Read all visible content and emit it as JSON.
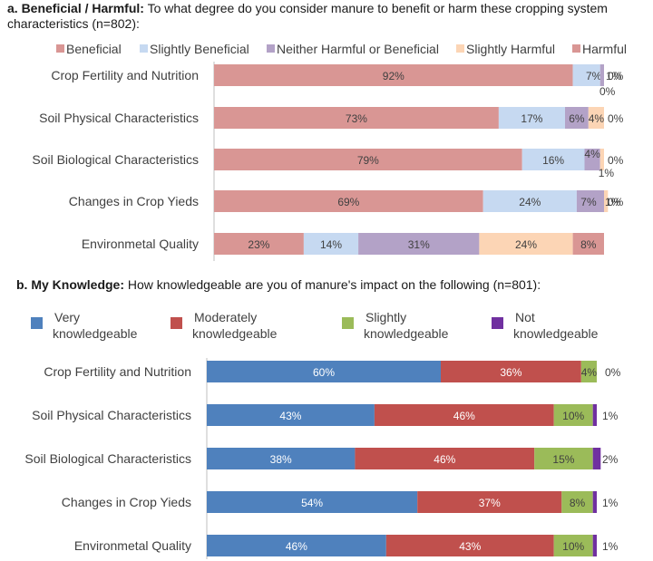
{
  "charts": {
    "a": {
      "bold_title": "a. Beneficial / Harmful:",
      "title": "To what degree do you consider manure to benefit or harm these cropping system characteristics (n=802):"
    },
    "b": {
      "bold_title": "b. My Knowledge:",
      "title": "How knowledgeable are you of manure's impact on the following (n=801):"
    }
  },
  "chart_data": [
    {
      "type": "bar",
      "orientation": "horizontal",
      "stacked": true,
      "title": "a. Beneficial / Harmful: To what degree do you consider manure to benefit or harm these cropping system characteristics (n=802):",
      "legend_position": "top",
      "categories": [
        "Crop Fertility and Nutrition",
        "Soil Physical Characteristics",
        "Soil Biological Characteristics",
        "Changes in Crop Yieds",
        "Environmetal Quality"
      ],
      "xlim": [
        0,
        100
      ],
      "series": [
        {
          "name": "Beneficial",
          "color": "#d99694",
          "values": [
            92,
            73,
            79,
            69,
            23
          ],
          "labels": [
            "92%",
            "73%",
            "79%",
            "69%",
            "23%"
          ]
        },
        {
          "name": "Slightly Beneficial",
          "color": "#c6d9f1",
          "values": [
            7,
            17,
            16,
            24,
            14
          ],
          "labels": [
            "7%",
            "17%",
            "16%",
            "24%",
            "14%"
          ]
        },
        {
          "name": "Neither Harmful or Beneficial",
          "color": "#b3a2c7",
          "values": [
            1,
            6,
            4,
            7,
            31
          ],
          "labels": [
            "1%",
            "6%",
            "4%",
            "7%",
            "31%"
          ]
        },
        {
          "name": "Slightly Harmful",
          "color": "#fcd5b5",
          "values": [
            0,
            4,
            1,
            1,
            24
          ],
          "labels": [
            "0%",
            "4%",
            "1%",
            "1%",
            "24%"
          ]
        },
        {
          "name": "Harmful",
          "color": "#d99694",
          "values": [
            0,
            0,
            0,
            0,
            8
          ],
          "labels": [
            "0%",
            "0%",
            "0%",
            "0%",
            "8%"
          ]
        }
      ]
    },
    {
      "type": "bar",
      "orientation": "horizontal",
      "stacked": true,
      "title": "b. My Knowledge: How knowledgeable are you of manure's impact on the following (n=801):",
      "legend_position": "top",
      "categories": [
        "Crop Fertility and Nutrition",
        "Soil Physical Characteristics",
        "Soil Biological Characteristics",
        "Changes in Crop Yieds",
        "Environmetal Quality"
      ],
      "xlim": [
        0,
        100
      ],
      "series": [
        {
          "name": "Very knowledgeable",
          "legend_lines": [
            "Very",
            "knowledgeable"
          ],
          "color": "#4f81bd",
          "values": [
            60,
            43,
            38,
            54,
            46
          ],
          "labels": [
            "60%",
            "43%",
            "38%",
            "54%",
            "46%"
          ]
        },
        {
          "name": "Moderately knowledgeable",
          "legend_lines": [
            "Moderately",
            "knowledgeable"
          ],
          "color": "#c0504d",
          "values": [
            36,
            46,
            46,
            37,
            43
          ],
          "labels": [
            "36%",
            "46%",
            "46%",
            "37%",
            "43%"
          ]
        },
        {
          "name": "Slightly knowledgeable",
          "legend_lines": [
            "Slightly",
            "knowledgeable"
          ],
          "color": "#9bbb59",
          "values": [
            4,
            10,
            15,
            8,
            10
          ],
          "labels": [
            "4%",
            "10%",
            "15%",
            "8%",
            "10%"
          ]
        },
        {
          "name": "Not knowledgeable",
          "legend_lines": [
            "Not",
            "knowledgeable"
          ],
          "color": "#7030a0",
          "values": [
            0,
            1,
            2,
            1,
            1
          ],
          "labels": [
            "0%",
            "1%",
            "2%",
            "1%",
            "1%"
          ]
        }
      ]
    }
  ]
}
